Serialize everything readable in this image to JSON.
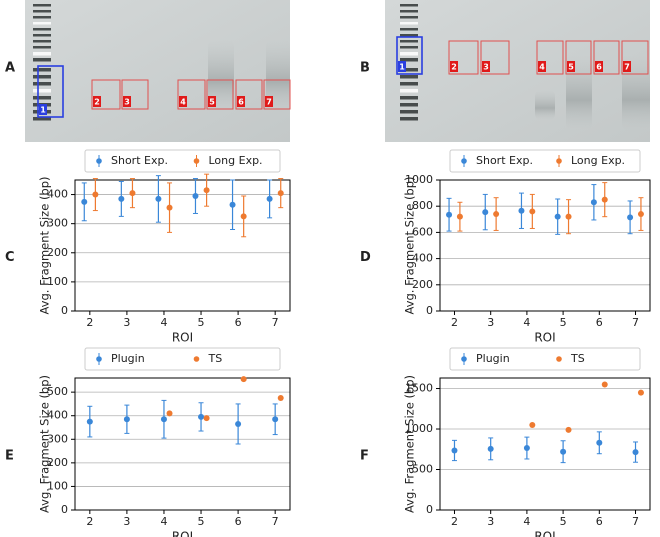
{
  "gels": [
    {
      "label": "A",
      "rois": [
        "1",
        "2",
        "3",
        "4",
        "5",
        "6",
        "7"
      ]
    },
    {
      "label": "B",
      "rois": [
        "1",
        "2",
        "3",
        "4",
        "5",
        "6",
        "7"
      ]
    }
  ],
  "chart_data": [
    {
      "type": "errorbar",
      "panel_label": "C",
      "ylabel": "Avg. Fragment Size (bp)",
      "xlabel": "ROI",
      "x": [
        2,
        3,
        4,
        5,
        6,
        7
      ],
      "xlim": [
        1.6,
        7.4
      ],
      "xticks": [
        2,
        3,
        4,
        5,
        6,
        7
      ],
      "ylim": [
        0,
        450
      ],
      "yticks": [
        0,
        100,
        200,
        300,
        400
      ],
      "grid": "y",
      "legend": "top",
      "series": [
        {
          "name": "Short Exp.",
          "color": "#3a87d8",
          "values": [
            375,
            385,
            385,
            395,
            365,
            385
          ],
          "errors": [
            65,
            60,
            80,
            60,
            85,
            65
          ]
        },
        {
          "name": "Long Exp.",
          "color": "#ee7a30",
          "values": [
            400,
            405,
            355,
            415,
            325,
            405
          ],
          "errors": [
            55,
            50,
            85,
            55,
            70,
            50
          ]
        }
      ]
    },
    {
      "type": "errorbar",
      "panel_label": "D",
      "ylabel": "Avg. Fragment Size (bp)",
      "xlabel": "ROI",
      "x": [
        2,
        3,
        4,
        5,
        6,
        7
      ],
      "xlim": [
        1.6,
        7.4
      ],
      "xticks": [
        2,
        3,
        4,
        5,
        6,
        7
      ],
      "ylim": [
        0,
        1000
      ],
      "yticks": [
        0,
        200,
        400,
        600,
        800,
        1000
      ],
      "grid": "y",
      "legend": "top",
      "series": [
        {
          "name": "Short Exp.",
          "color": "#3a87d8",
          "values": [
            735,
            755,
            765,
            720,
            830,
            715
          ],
          "errors": [
            125,
            135,
            135,
            135,
            135,
            125
          ]
        },
        {
          "name": "Long Exp.",
          "color": "#ee7a30",
          "values": [
            720,
            740,
            760,
            720,
            850,
            740
          ],
          "errors": [
            110,
            125,
            130,
            130,
            130,
            125
          ]
        }
      ]
    },
    {
      "type": "errorbar",
      "panel_label": "E",
      "ylabel": "Avg. Fragment Size (bp)",
      "xlabel": "ROI",
      "x": [
        2,
        3,
        4,
        5,
        6,
        7
      ],
      "xlim": [
        1.6,
        7.4
      ],
      "xticks": [
        2,
        3,
        4,
        5,
        6,
        7
      ],
      "ylim": [
        0,
        560
      ],
      "yticks": [
        0,
        100,
        200,
        300,
        400,
        500
      ],
      "grid": "y",
      "legend": "top",
      "series": [
        {
          "name": "Plugin",
          "color": "#3a87d8",
          "values": [
            375,
            385,
            385,
            395,
            365,
            385
          ],
          "errors": [
            65,
            60,
            80,
            60,
            85,
            65
          ]
        },
        {
          "name": "TS",
          "color": "#ee7a30",
          "values": [
            null,
            null,
            410,
            390,
            555,
            475
          ]
        }
      ]
    },
    {
      "type": "errorbar",
      "panel_label": "F",
      "ylabel": "Avg. Fragment Size (bp)",
      "xlabel": "ROI",
      "x": [
        2,
        3,
        4,
        5,
        6,
        7
      ],
      "xlim": [
        1.6,
        7.4
      ],
      "xticks": [
        2,
        3,
        4,
        5,
        6,
        7
      ],
      "ylim": [
        0,
        1630
      ],
      "yticks": [
        0,
        500,
        1000,
        1500
      ],
      "grid": "y",
      "legend": "top",
      "series": [
        {
          "name": "Plugin",
          "color": "#3a87d8",
          "values": [
            735,
            755,
            765,
            720,
            830,
            715
          ],
          "errors": [
            125,
            135,
            135,
            135,
            135,
            125
          ]
        },
        {
          "name": "TS",
          "color": "#ee7a30",
          "values": [
            null,
            null,
            1050,
            990,
            1550,
            1450
          ]
        }
      ]
    }
  ]
}
